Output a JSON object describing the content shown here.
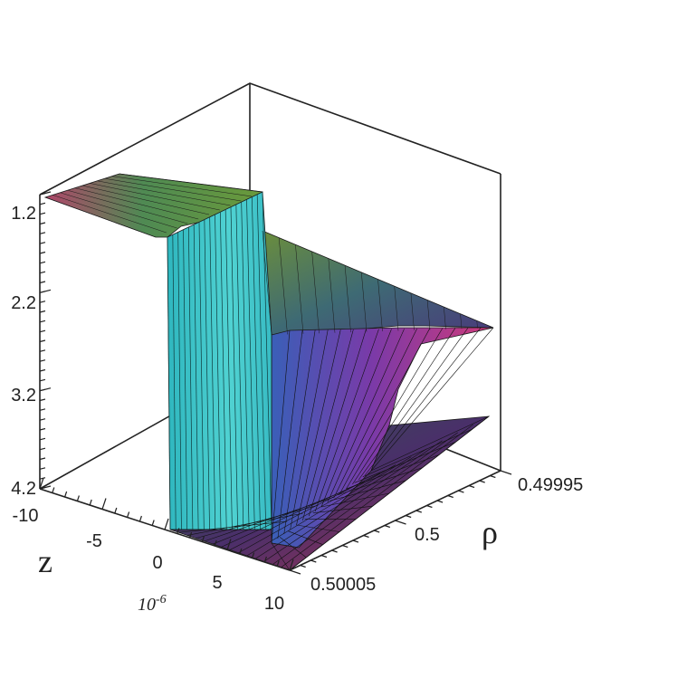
{
  "chart_data": {
    "type": "surface3d",
    "title": "",
    "z_axis": {
      "label": "z",
      "multiplier": "10^-6",
      "ticks": [
        -10,
        -5,
        0,
        5,
        10
      ],
      "range": [
        -10,
        10
      ]
    },
    "rho_axis": {
      "label": "ρ",
      "ticks": [
        0.50005,
        0.5,
        0.49995
      ],
      "tick_labels": [
        "0.50005",
        "0.5",
        "0.49995"
      ],
      "range": [
        0.50005,
        0.49995
      ]
    },
    "value_axis": {
      "ticks": [
        -4.2,
        -3.2,
        -2.2,
        -1.2
      ],
      "tick_labels": [
        "4.2",
        "3.2",
        "2.2",
        "1.2"
      ],
      "range": [
        -4.2,
        -1.2
      ],
      "label": ""
    },
    "surface": {
      "description_values": {
        "plateau_value": -1.2,
        "valley_value": -4.2,
        "step_at_z": 0,
        "shelf_at_rho": 0.5
      }
    },
    "colors": {
      "step_face": "#3fc9c9",
      "box_lines": "#222222",
      "mesh_lines": "#1a1a1a"
    }
  },
  "tick_text": {
    "v0": "4.2",
    "v1": "3.2",
    "v2": "2.2",
    "v3": "1.2",
    "z0": "-10",
    "z1": "-5",
    "z2": "0",
    "z3": "5",
    "z4": "10",
    "r0": "0.49995",
    "r1": "0.5",
    "r2": "0.50005"
  },
  "labels": {
    "z": "z",
    "rho": "ρ",
    "multiplier": "10",
    "multiplier_exp": "-6"
  }
}
